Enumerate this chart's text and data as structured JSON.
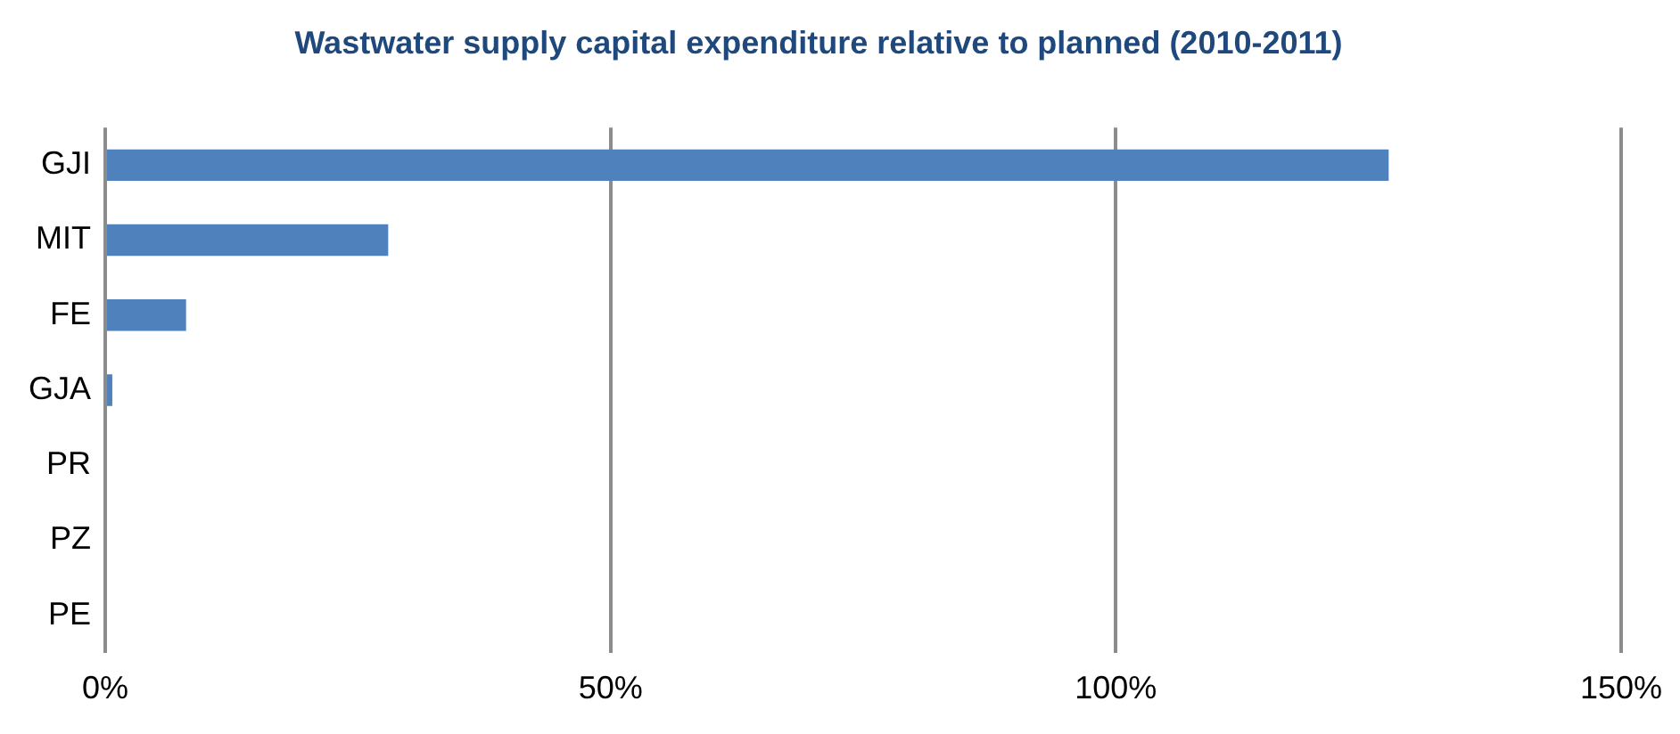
{
  "chart_data": {
    "type": "bar",
    "orientation": "horizontal",
    "title": "Wastwater supply capital expenditure relative to planned (2010-2011)",
    "categories": [
      "GJI",
      "MIT",
      "FE",
      "GJA",
      "PR",
      "PZ",
      "PE"
    ],
    "values": [
      127,
      28,
      8,
      0.7,
      0,
      0,
      0
    ],
    "color": "#4f81bd",
    "xlim": [
      0,
      150
    ],
    "xticks": [
      {
        "value": 0,
        "label": "0%"
      },
      {
        "value": 50,
        "label": "50%"
      },
      {
        "value": 100,
        "label": "100%"
      },
      {
        "value": 150,
        "label": "150%"
      }
    ],
    "grid": "x",
    "legend": false
  }
}
